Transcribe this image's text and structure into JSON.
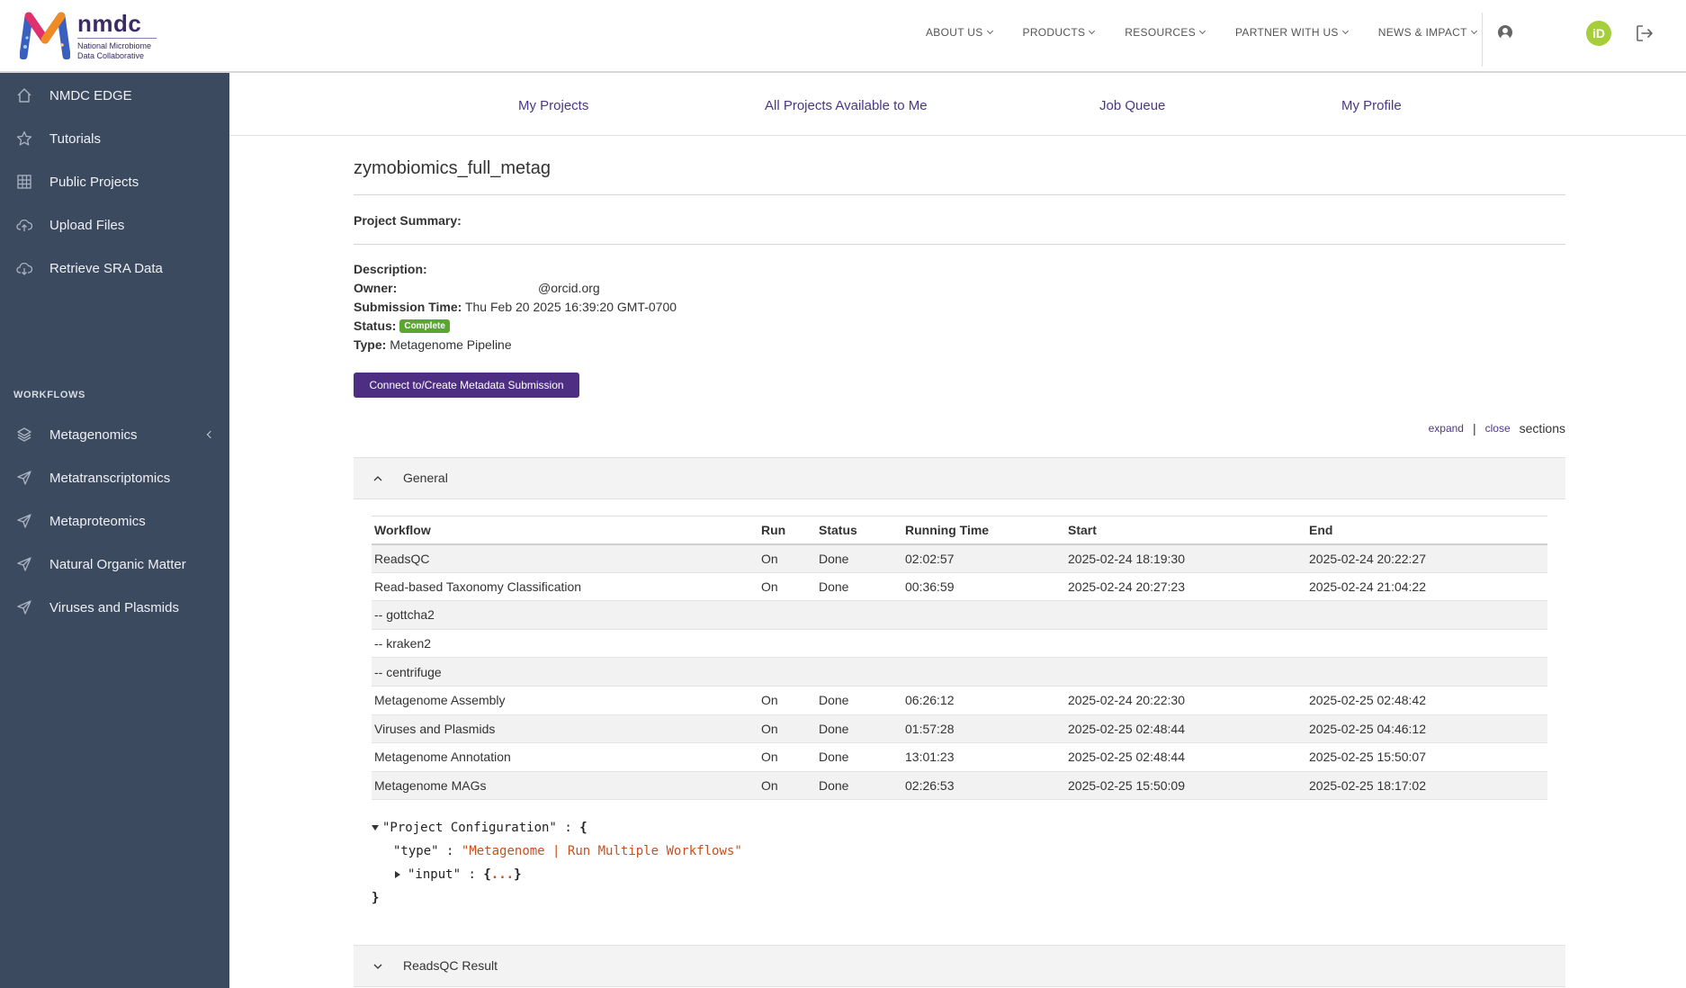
{
  "header": {
    "logo": {
      "name": "nmdc",
      "subtitle_line1": "National Microbiome",
      "subtitle_line2": "Data Collaborative"
    },
    "nav": [
      "ABOUT US",
      "PRODUCTS",
      "RESOURCES",
      "PARTNER WITH US",
      "NEWS & IMPACT"
    ],
    "orcid_label": "iD",
    "orcid_color": "#a6ce39"
  },
  "sidebar": {
    "items": [
      {
        "label": "NMDC EDGE",
        "icon": "home-icon"
      },
      {
        "label": "Tutorials",
        "icon": "star-icon"
      },
      {
        "label": "Public Projects",
        "icon": "grid-icon"
      },
      {
        "label": "Upload Files",
        "icon": "cloud-upload-icon"
      },
      {
        "label": "Retrieve SRA Data",
        "icon": "cloud-download-icon"
      }
    ],
    "section_title": "WORKFLOWS",
    "workflows": [
      {
        "label": "Metagenomics",
        "icon": "layers-icon"
      },
      {
        "label": "Metatranscriptomics",
        "icon": "send-icon"
      },
      {
        "label": "Metaproteomics",
        "icon": "send-icon"
      },
      {
        "label": "Natural Organic Matter",
        "icon": "send-icon"
      },
      {
        "label": "Viruses and Plasmids",
        "icon": "send-icon"
      }
    ]
  },
  "subnav": [
    "My Projects",
    "All Projects Available to Me",
    "Job Queue",
    "My Profile"
  ],
  "project": {
    "name": "zymobiomics_full_metag",
    "summary_label": "Project Summary:",
    "description_label": "Description:",
    "owner_label": "Owner:",
    "owner_value": "@orcid.org",
    "submission_label": "Submission Time:",
    "submission_value": "Thu Feb 20 2025 16:39:20 GMT-0700",
    "status_label": "Status:",
    "status_value": "Complete",
    "type_label": "Type:",
    "type_value": "Metagenome Pipeline",
    "connect_button": "Connect to/Create Metadata Submission",
    "status_color": "#5aa730",
    "button_color": "#4e2e83"
  },
  "sections_controls": {
    "expand": "expand",
    "separator": "|",
    "close": "close",
    "suffix": "sections"
  },
  "general": {
    "title": "General",
    "columns": [
      "Workflow",
      "Run",
      "Status",
      "Running Time",
      "Start",
      "End"
    ],
    "rows": [
      [
        "ReadsQC",
        "On",
        "Done",
        "02:02:57",
        "2025-02-24 18:19:30",
        "2025-02-24 20:22:27"
      ],
      [
        "Read-based Taxonomy Classification",
        "On",
        "Done",
        "00:36:59",
        "2025-02-24 20:27:23",
        "2025-02-24 21:04:22"
      ],
      [
        "-- gottcha2",
        "",
        "",
        "",
        "",
        ""
      ],
      [
        "-- kraken2",
        "",
        "",
        "",
        "",
        ""
      ],
      [
        "-- centrifuge",
        "",
        "",
        "",
        "",
        ""
      ],
      [
        "Metagenome Assembly",
        "On",
        "Done",
        "06:26:12",
        "2025-02-24 20:22:30",
        "2025-02-25 02:48:42"
      ],
      [
        "Viruses and Plasmids",
        "On",
        "Done",
        "01:57:28",
        "2025-02-25 02:48:44",
        "2025-02-25 04:46:12"
      ],
      [
        "Metagenome Annotation",
        "On",
        "Done",
        "13:01:23",
        "2025-02-25 02:48:44",
        "2025-02-25 15:50:07"
      ],
      [
        "Metagenome MAGs",
        "On",
        "Done",
        "02:26:53",
        "2025-02-25 15:50:09",
        "2025-02-25 18:17:02"
      ]
    ]
  },
  "config": {
    "root_key": "\"Project Configuration\"",
    "colon": ":",
    "open_brace": "{",
    "close_brace": "}",
    "type_key": "\"type\"",
    "type_value": "\"Metagenome | Run Multiple Workflows\"",
    "input_key": "\"input\"",
    "input_open": "{",
    "input_ellipsis": "...",
    "input_close": "}"
  },
  "readsqc_result": {
    "title": "ReadsQC Result"
  }
}
